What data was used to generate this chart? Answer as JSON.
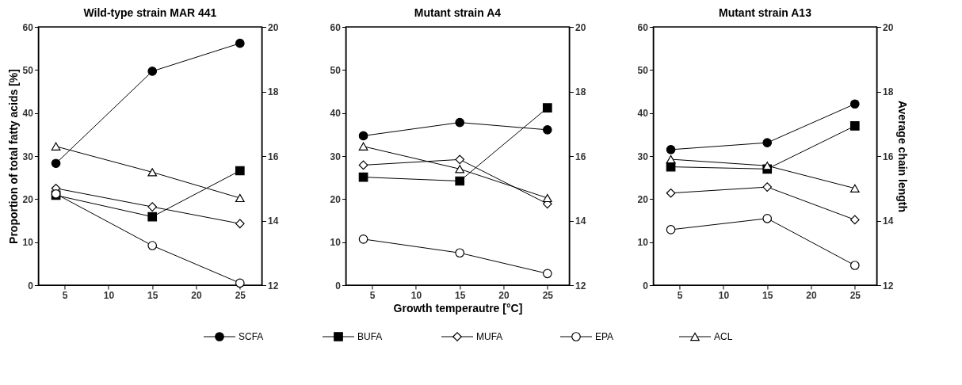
{
  "chart_data": [
    {
      "type": "line",
      "title": "Wild-type strain MAR 441",
      "ylabel": "Proportion of total fatty acids [%]",
      "x": [
        4,
        15,
        25
      ],
      "xlim": [
        2,
        27.5
      ],
      "xticks": [
        5,
        10,
        15,
        20,
        25
      ],
      "ylim": [
        0,
        60
      ],
      "yticks": [
        0,
        10,
        20,
        30,
        40,
        50,
        60
      ],
      "y2lim": [
        12,
        20
      ],
      "y2ticks": [
        12,
        14,
        16,
        18,
        20
      ],
      "grid": false,
      "legend": "bottom",
      "series": [
        {
          "name": "SCFA",
          "color": "#000000",
          "marker": "circle",
          "values": [
            28.3,
            49.7,
            56.2
          ]
        },
        {
          "name": "BUFA",
          "color": "#000000",
          "marker": "square",
          "values": [
            20.9,
            15.9,
            26.6
          ]
        },
        {
          "name": "MUFA",
          "color": "#ffffff",
          "marker": "diamond",
          "values": [
            22.5,
            18.2,
            14.3
          ]
        },
        {
          "name": "EPA",
          "color": "#ffffff",
          "marker": "circle",
          "values": [
            21.2,
            9.2,
            0.5
          ]
        },
        {
          "name": "ACL",
          "color": "#ffffff",
          "marker": "triangle",
          "axis": "y2",
          "values": [
            16.3,
            15.5,
            14.7
          ]
        }
      ]
    },
    {
      "type": "line",
      "title": "Mutant strain A4",
      "xlabel": "Growth temperautre [°C]",
      "x": [
        4,
        15,
        25
      ],
      "xlim": [
        2,
        27.5
      ],
      "xticks": [
        5,
        10,
        15,
        20,
        25
      ],
      "ylim": [
        0,
        60
      ],
      "yticks": [
        0,
        10,
        20,
        30,
        40,
        50,
        60
      ],
      "y2lim": [
        12,
        20
      ],
      "y2ticks": [
        12,
        14,
        16,
        18,
        20
      ],
      "grid": false,
      "series": [
        {
          "name": "SCFA",
          "color": "#000000",
          "marker": "circle",
          "values": [
            34.7,
            37.8,
            36.1
          ]
        },
        {
          "name": "BUFA",
          "color": "#000000",
          "marker": "square",
          "values": [
            25.1,
            24.2,
            41.2
          ]
        },
        {
          "name": "MUFA",
          "color": "#ffffff",
          "marker": "diamond",
          "values": [
            27.9,
            29.2,
            18.9
          ]
        },
        {
          "name": "EPA",
          "color": "#ffffff",
          "marker": "circle",
          "values": [
            10.7,
            7.5,
            2.7
          ]
        },
        {
          "name": "ACL",
          "color": "#ffffff",
          "marker": "triangle",
          "axis": "y2",
          "values": [
            16.3,
            15.6,
            14.7
          ]
        }
      ]
    },
    {
      "type": "line",
      "title": "Mutant strain A13",
      "y2label": "Average chain length",
      "x": [
        4,
        15,
        25
      ],
      "xlim": [
        2,
        27.5
      ],
      "xticks": [
        5,
        10,
        15,
        20,
        25
      ],
      "ylim": [
        0,
        60
      ],
      "yticks": [
        0,
        10,
        20,
        30,
        40,
        50,
        60
      ],
      "y2lim": [
        12,
        20
      ],
      "y2ticks": [
        12,
        14,
        16,
        18,
        20
      ],
      "grid": false,
      "series": [
        {
          "name": "SCFA",
          "color": "#000000",
          "marker": "circle",
          "values": [
            31.5,
            33.1,
            42.1
          ]
        },
        {
          "name": "BUFA",
          "color": "#000000",
          "marker": "square",
          "values": [
            27.5,
            27.0,
            37.0
          ]
        },
        {
          "name": "MUFA",
          "color": "#ffffff",
          "marker": "diamond",
          "values": [
            21.4,
            22.8,
            15.2
          ]
        },
        {
          "name": "EPA",
          "color": "#ffffff",
          "marker": "circle",
          "values": [
            12.9,
            15.5,
            4.6
          ]
        },
        {
          "name": "ACL",
          "color": "#ffffff",
          "marker": "triangle",
          "axis": "y2",
          "values": [
            15.9,
            15.7,
            15.0
          ]
        }
      ]
    }
  ]
}
